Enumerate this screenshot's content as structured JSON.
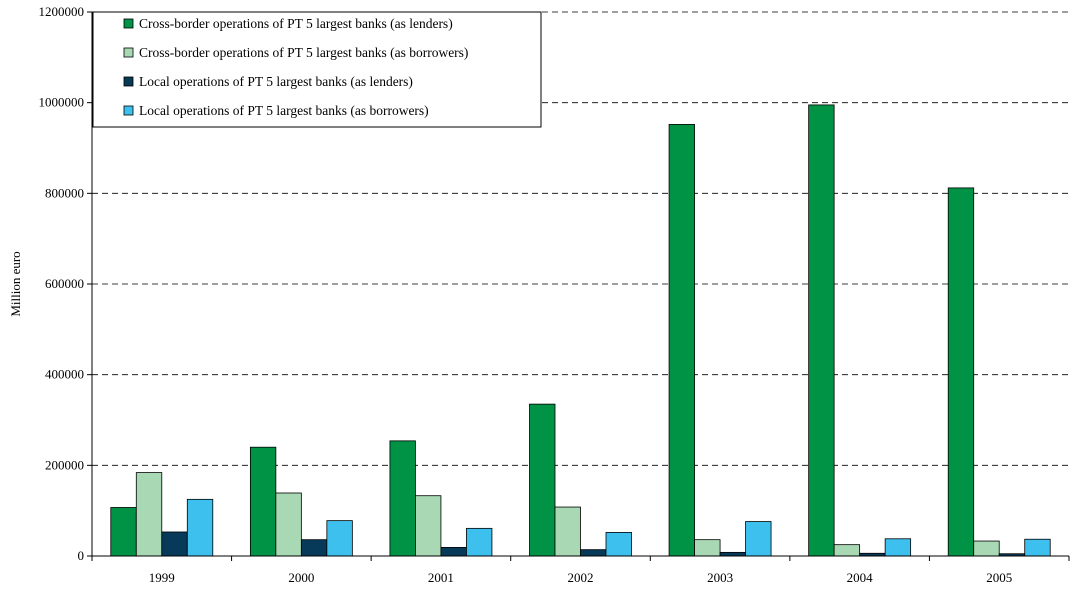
{
  "chart_data": {
    "type": "bar",
    "title": "",
    "xlabel": "",
    "ylabel": "Million euro",
    "ylim": [
      0,
      1200000
    ],
    "yticks": [
      0,
      200000,
      400000,
      600000,
      800000,
      1000000,
      1200000
    ],
    "ytick_labels": [
      "0",
      "200000",
      "400000",
      "600000",
      "800000",
      "1000000",
      "1200000"
    ],
    "grid": "horizontal dashed",
    "legend_position": "top-left",
    "categories": [
      "1999",
      "2000",
      "2001",
      "2002",
      "2003",
      "2004",
      "2005"
    ],
    "series": [
      {
        "name": "Cross-border operations of PT 5 largest banks (as lenders)",
        "color": "#009245",
        "values": [
          107000,
          240000,
          254000,
          335000,
          952000,
          995000,
          812000
        ]
      },
      {
        "name": "Cross-border operations of PT 5 largest banks (as borrowers)",
        "color": "#a8d8b4",
        "values": [
          184000,
          139000,
          133000,
          108000,
          36000,
          25000,
          33000
        ]
      },
      {
        "name": "Local operations of PT 5 largest banks (as lenders)",
        "color": "#073a58",
        "values": [
          53000,
          36000,
          19000,
          14000,
          8000,
          6000,
          5000
        ]
      },
      {
        "name": "Local operations of PT 5 largest banks (as borrowers)",
        "color": "#3ec0ef",
        "values": [
          125000,
          78000,
          61000,
          52000,
          76000,
          38000,
          37000
        ]
      }
    ]
  }
}
